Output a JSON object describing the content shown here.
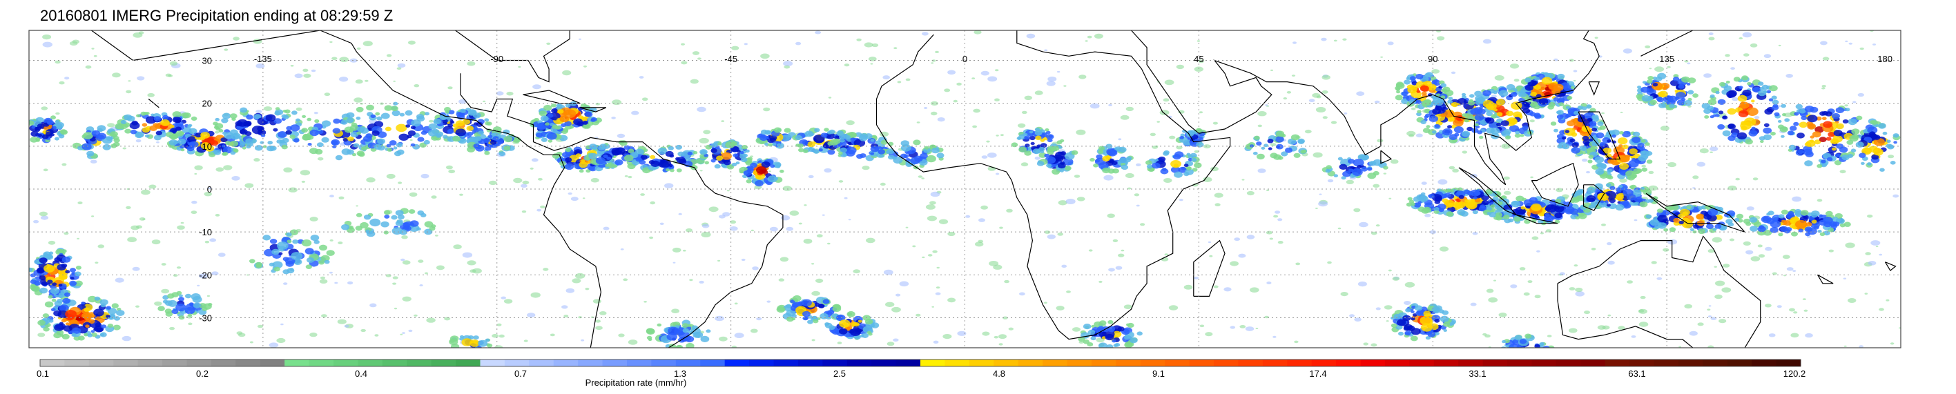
{
  "title": "20160801 IMERG Precipitation ending at 08:29:59 Z",
  "map": {
    "lat_labels": [
      "30",
      "20",
      "10",
      "0",
      "-10",
      "-20",
      "-30"
    ],
    "lon_labels": [
      "-135",
      "-90",
      "-45",
      "0",
      "45",
      "90",
      "135",
      "180"
    ],
    "lat_values": [
      30,
      20,
      10,
      0,
      -10,
      -20,
      -30
    ],
    "lon_values": [
      -135,
      -90,
      -45,
      0,
      45,
      90,
      135,
      180
    ],
    "extent": {
      "lon": [
        -180,
        180
      ],
      "lat": [
        -37,
        37
      ]
    },
    "gridlines": "dotted"
  },
  "colorbar": {
    "label": "Precipitation rate (mm/hr)",
    "tick_labels": [
      "0.1",
      "0.2",
      "0.4",
      "0.7",
      "1.3",
      "2.5",
      "4.8",
      "9.1",
      "17.4",
      "33.1",
      "63.1",
      "120.2"
    ],
    "colors": [
      "#c8c8c8",
      "#c0c0c0",
      "#b8b8b8",
      "#b0b0b0",
      "#a8a8a8",
      "#a0a0a0",
      "#989898",
      "#909090",
      "#888888",
      "#808080",
      "#78e08c",
      "#70d884",
      "#68d07c",
      "#60c874",
      "#58c06c",
      "#50b864",
      "#48b05c",
      "#40a854",
      "#c8d8ff",
      "#b8ccff",
      "#a8c0ff",
      "#98b4ff",
      "#88a8ff",
      "#789cff",
      "#6890ff",
      "#5884ff",
      "#4878ff",
      "#386cff",
      "#0028ff",
      "#0020f0",
      "#0018e0",
      "#0010d0",
      "#0008c0",
      "#0000b0",
      "#0000a8",
      "#0000a0",
      "#fff000",
      "#ffe000",
      "#ffd000",
      "#ffc000",
      "#ffb000",
      "#ffa000",
      "#ff9400",
      "#ff8800",
      "#ff7c00",
      "#ff7000",
      "#ff6400",
      "#ff5800",
      "#ff4c00",
      "#ff4000",
      "#ff3400",
      "#ff2800",
      "#ff1c00",
      "#ff1000",
      "#f00000",
      "#e00000",
      "#d00000",
      "#c00000",
      "#b00000",
      "#a00000",
      "#980000",
      "#900000",
      "#880000",
      "#800000",
      "#781000",
      "#701000",
      "#681000",
      "#601000",
      "#581000",
      "#501000",
      "#480800",
      "#400800"
    ]
  }
}
